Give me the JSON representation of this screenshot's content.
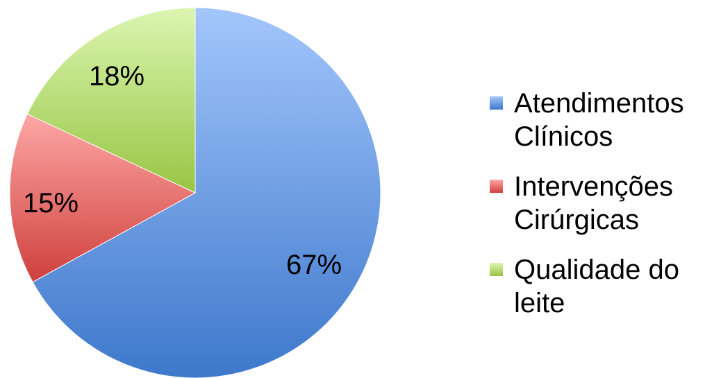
{
  "chart_data": {
    "type": "pie",
    "slices": [
      {
        "label": "Atendimentos Clínicos",
        "legend_lines": [
          "Atendimentos",
          "Clínicos"
        ],
        "value": 67,
        "data_label": "67%",
        "color": "#4a7fd0"
      },
      {
        "label": "Intervenções Cirúrgicas",
        "legend_lines": [
          "Intervenções",
          "Cirúrgicas"
        ],
        "value": 15,
        "data_label": "15%",
        "color": "#d44a47"
      },
      {
        "label": "Qualidade do leite",
        "legend_lines": [
          "Qualidade do",
          "leite"
        ],
        "value": 18,
        "data_label": "18%",
        "color": "#9cc948"
      }
    ],
    "start_angle": "12 o'clock",
    "direction": "clockwise",
    "legend_position": "right"
  }
}
